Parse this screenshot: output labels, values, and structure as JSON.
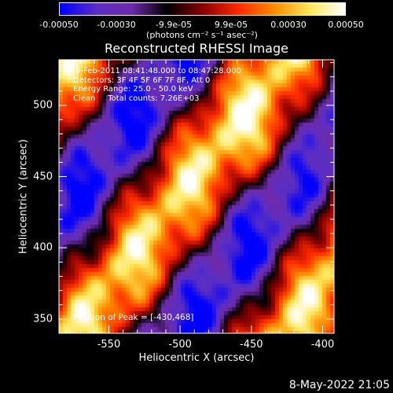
{
  "colorbar": {
    "tick_labels": [
      "-0.00050",
      "-0.00030",
      "-9.9e-05",
      "9.9e-05",
      "0.00030",
      "0.00050"
    ],
    "units": "(photons cm⁻² s⁻¹ asec⁻²)",
    "colors": [
      "#0000ff",
      "#5a2ec4",
      "#6e2bab",
      "#000000",
      "#8a0000",
      "#ff2a00",
      "#ff8a00",
      "#ffe85a",
      "#ffffff"
    ]
  },
  "title": "Reconstructed RHESSI Image",
  "info_lines": [
    " 9-Feb-2011 08:41:48.000 to 08:47:28.000",
    "Detectors: 3F 4F 5F 6F 7F 8F, Att 0",
    "Energy Range: 25.0 - 50.0 keV",
    "Clean     Total counts: 7.26E+03"
  ],
  "peak_text": "Position of Peak = [-430,468]",
  "xlabel": "Heliocentric X (arcsec)",
  "ylabel": "Heliocentric Y (arcsec)",
  "x_ticks": [
    "-550",
    "-500",
    "-450",
    "-400"
  ],
  "y_ticks": [
    "350",
    "400",
    "450",
    "500"
  ],
  "x_range": [
    -585,
    -392
  ],
  "y_range": [
    340,
    532
  ],
  "stamp": "8-May-2022 21:05"
}
